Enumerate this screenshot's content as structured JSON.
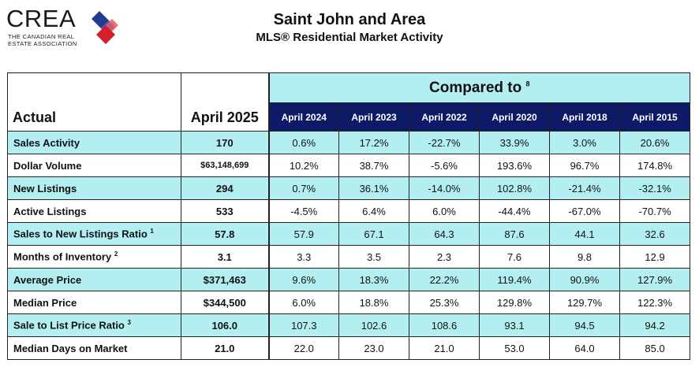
{
  "logo": {
    "word": "CREA",
    "sub_line1": "THE CANADIAN REAL",
    "sub_line2": "ESTATE ASSOCIATION",
    "colors": {
      "blue": "#1f3c8f",
      "red": "#d61f2c"
    }
  },
  "header": {
    "title": "Saint John and Area",
    "subtitle": "MLS® Residential Market Activity"
  },
  "table": {
    "actual_label": "Actual",
    "current_period": "April 2025",
    "compared_to_label": "Compared to",
    "compared_to_footnote": "8",
    "periods": [
      "April 2024",
      "April 2023",
      "April 2022",
      "April 2020",
      "April 2018",
      "April 2015"
    ],
    "rows": [
      {
        "label": "Sales Activity",
        "footnote": "",
        "current": "170",
        "values": [
          "0.6%",
          "17.2%",
          "-22.7%",
          "33.9%",
          "3.0%",
          "20.6%"
        ]
      },
      {
        "label": "Dollar Volume",
        "footnote": "",
        "current": "$63,148,699",
        "values": [
          "10.2%",
          "38.7%",
          "-5.6%",
          "193.6%",
          "96.7%",
          "174.8%"
        ]
      },
      {
        "label": "New Listings",
        "footnote": "",
        "current": "294",
        "values": [
          "0.7%",
          "36.1%",
          "-14.0%",
          "102.8%",
          "-21.4%",
          "-32.1%"
        ]
      },
      {
        "label": "Active Listings",
        "footnote": "",
        "current": "533",
        "values": [
          "-4.5%",
          "6.4%",
          "6.0%",
          "-44.4%",
          "-67.0%",
          "-70.7%"
        ]
      },
      {
        "label": "Sales to New Listings Ratio",
        "footnote": "1",
        "current": "57.8",
        "values": [
          "57.9",
          "67.1",
          "64.3",
          "87.6",
          "44.1",
          "32.6"
        ]
      },
      {
        "label": "Months of Inventory",
        "footnote": "2",
        "current": "3.1",
        "values": [
          "3.3",
          "3.5",
          "2.3",
          "7.6",
          "9.8",
          "12.9"
        ]
      },
      {
        "label": "Average Price",
        "footnote": "",
        "current": "$371,463",
        "values": [
          "9.6%",
          "18.3%",
          "22.2%",
          "119.4%",
          "90.9%",
          "127.9%"
        ]
      },
      {
        "label": "Median Price",
        "footnote": "",
        "current": "$344,500",
        "values": [
          "6.0%",
          "18.8%",
          "25.3%",
          "129.8%",
          "129.7%",
          "122.3%"
        ]
      },
      {
        "label": "Sale to List Price Ratio",
        "footnote": "3",
        "current": "106.0",
        "values": [
          "107.3",
          "102.6",
          "108.6",
          "93.1",
          "94.5",
          "94.2"
        ]
      },
      {
        "label": "Median Days on Market",
        "footnote": "",
        "current": "21.0",
        "values": [
          "22.0",
          "23.0",
          "21.0",
          "53.0",
          "64.0",
          "85.0"
        ]
      }
    ]
  }
}
